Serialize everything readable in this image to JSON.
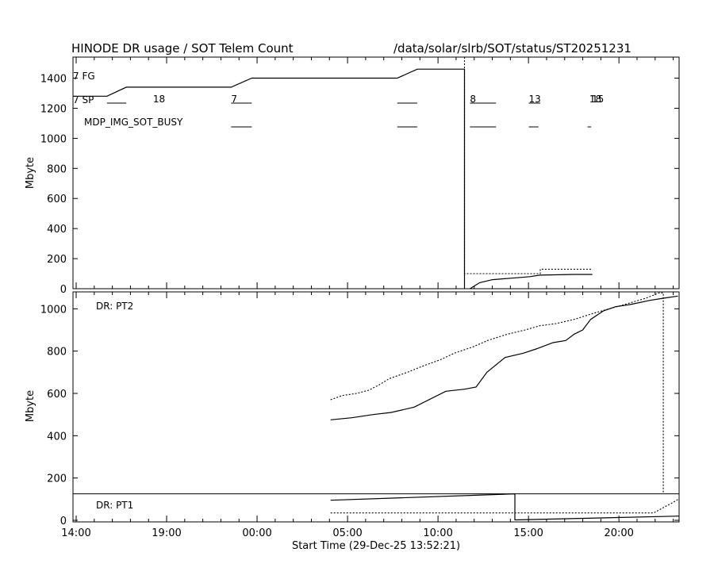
{
  "header": {
    "title": "HINODE DR usage / SOT Telem Count",
    "path": "/data/solar/slrb/SOT/status/ST20251231"
  },
  "chart_data": [
    {
      "type": "line",
      "name": "top",
      "ylabel": "Mbyte",
      "ylim": [
        0,
        1540
      ],
      "yticks": [
        "1400",
        "1200",
        "1000",
        "800",
        "600",
        "400",
        "200",
        "0"
      ],
      "xlim": [
        0,
        100
      ],
      "labels": {
        "fg": "7 FG",
        "sp": "7 SP",
        "busy": "MDP_IMG_SOT_BUSY"
      },
      "sp_counts": [
        {
          "x": 13.2,
          "text": "18"
        },
        {
          "x": 26.1,
          "text": "7"
        },
        {
          "x": 65.5,
          "text": "8"
        },
        {
          "x": 75.2,
          "text": "13"
        },
        {
          "x": 85.2,
          "text": "18"
        },
        {
          "x": 85.6,
          "text": "15"
        }
      ],
      "sp_bars": [
        [
          5.6,
          8.8
        ],
        [
          26.1,
          29.5
        ],
        [
          53.5,
          56.8
        ],
        [
          65.5,
          69.8
        ],
        [
          75.2,
          77.1
        ]
      ],
      "busy_bars": [
        [
          26.1,
          29.5
        ],
        [
          53.5,
          56.8
        ],
        [
          65.5,
          69.8
        ],
        [
          75.2,
          76.8
        ],
        [
          84.9,
          85.5
        ]
      ],
      "series": [
        {
          "style": "solid",
          "x": [
            0,
            5.6,
            8.8,
            26.1,
            29.5,
            53.5,
            56.8,
            64.6,
            64.6
          ],
          "y": [
            1280,
            1280,
            1340,
            1340,
            1400,
            1400,
            1460,
            1460,
            0
          ]
        },
        {
          "style": "solid",
          "x": [
            65.5,
            67.1,
            69.2,
            72.4,
            75.4,
            77.0,
            82.6,
            85.7
          ],
          "y": [
            0,
            40,
            60,
            70,
            80,
            90,
            95,
            95
          ]
        },
        {
          "style": "dotted",
          "x": [
            64.6,
            64.6,
            77.1,
            77.1,
            85.7
          ],
          "y": [
            1540,
            100,
            100,
            130,
            130
          ]
        }
      ]
    },
    {
      "type": "line",
      "name": "bottom",
      "ylabel": "Mbyte",
      "ylim": [
        0,
        1080
      ],
      "yticks": [
        "1000",
        "800",
        "600",
        "400",
        "200",
        "0"
      ],
      "xticks": [
        "14:00",
        "19:00",
        "00:00",
        "05:00",
        "10:00",
        "15:00",
        "20:00"
      ],
      "xlabel": "Start Time (29-Dec-25 13:52:21)",
      "labels": {
        "pt2": "DR: PT2",
        "pt1": "DR: PT1"
      },
      "pt1_top": 125,
      "series": [
        {
          "style": "solid",
          "x": [
            42.5,
            46,
            49.5,
            52.5,
            56.3,
            61.5,
            64.6,
            66.5,
            68.3,
            71.3,
            74.3,
            76.4,
            79.2,
            81.3,
            82.7,
            84.1,
            85.4,
            87.5,
            89.5,
            91.9,
            95.2,
            97.4,
            99.8
          ],
          "y": [
            475,
            485,
            500,
            510,
            535,
            610,
            620,
            630,
            700,
            770,
            790,
            810,
            840,
            850,
            880,
            900,
            950,
            990,
            1010,
            1020,
            1040,
            1050,
            1060
          ]
        },
        {
          "style": "dotted",
          "x": [
            42.5,
            44.4,
            46.8,
            48.8,
            50.5,
            52.2,
            55.2,
            57.8,
            60.7,
            62.9,
            66.0,
            68.4,
            71.7,
            74.6,
            77.0,
            79.7,
            82.7,
            86.0,
            88.5,
            91.0,
            94.5,
            96.7,
            97.4,
            97.4
          ],
          "y": [
            570,
            590,
            600,
            615,
            640,
            670,
            700,
            730,
            760,
            790,
            820,
            850,
            880,
            900,
            920,
            930,
            950,
            980,
            1000,
            1020,
            1050,
            1075,
            1075,
            125
          ]
        },
        {
          "style": "solid",
          "x": [
            42.5,
            72.9,
            72.9
          ],
          "y": [
            95,
            125,
            0
          ]
        },
        {
          "style": "dotted",
          "x": [
            42.5,
            95.8,
            97.4,
            98.7,
            99.9
          ],
          "y": [
            35,
            35,
            60,
            80,
            100
          ]
        },
        {
          "style": "solid",
          "x": [
            72.9,
            100
          ],
          "y": [
            2,
            20
          ]
        }
      ]
    }
  ]
}
